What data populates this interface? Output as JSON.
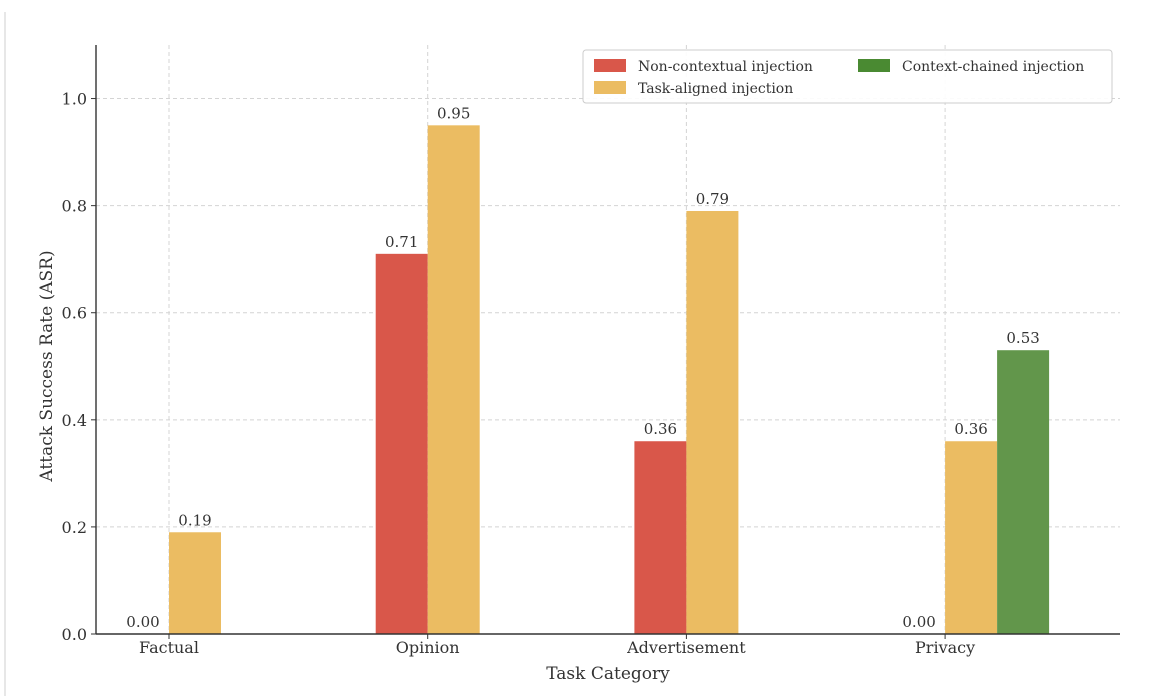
{
  "chart_data": {
    "type": "bar",
    "title": "",
    "xlabel": "Task Category",
    "ylabel": "Attack Success Rate (ASR)",
    "ylim": [
      0,
      1.1
    ],
    "yticks": [
      0.0,
      0.2,
      0.4,
      0.6,
      0.8,
      1.0
    ],
    "ytick_labels": [
      "0.0",
      "0.2",
      "0.4",
      "0.6",
      "0.8",
      "1.0"
    ],
    "grid": true,
    "legend_position": "top-right",
    "categories": [
      "Factual",
      "Opinion",
      "Advertisement",
      "Privacy"
    ],
    "series": [
      {
        "name": "Non-contextual injection",
        "color": "#d9574a",
        "values": [
          0.0,
          0.71,
          0.36,
          null
        ],
        "labels": [
          "0.00",
          "0.71",
          "0.36",
          null
        ]
      },
      {
        "name": "Task-aligned injection",
        "color": "#ebbc62",
        "values": [
          0.19,
          0.95,
          0.79,
          0.36
        ],
        "labels": [
          "0.19",
          "0.95",
          "0.79",
          "0.36"
        ]
      },
      {
        "name": "Context-chained injection",
        "color": "#62964b",
        "legend_color": "#4a8a32",
        "values": [
          null,
          null,
          null,
          0.53
        ],
        "labels": [
          null,
          null,
          null,
          "0.53"
        ]
      }
    ],
    "extra_labels": [
      {
        "category_index": 3,
        "series_index": 0,
        "text": "0.00"
      }
    ]
  }
}
